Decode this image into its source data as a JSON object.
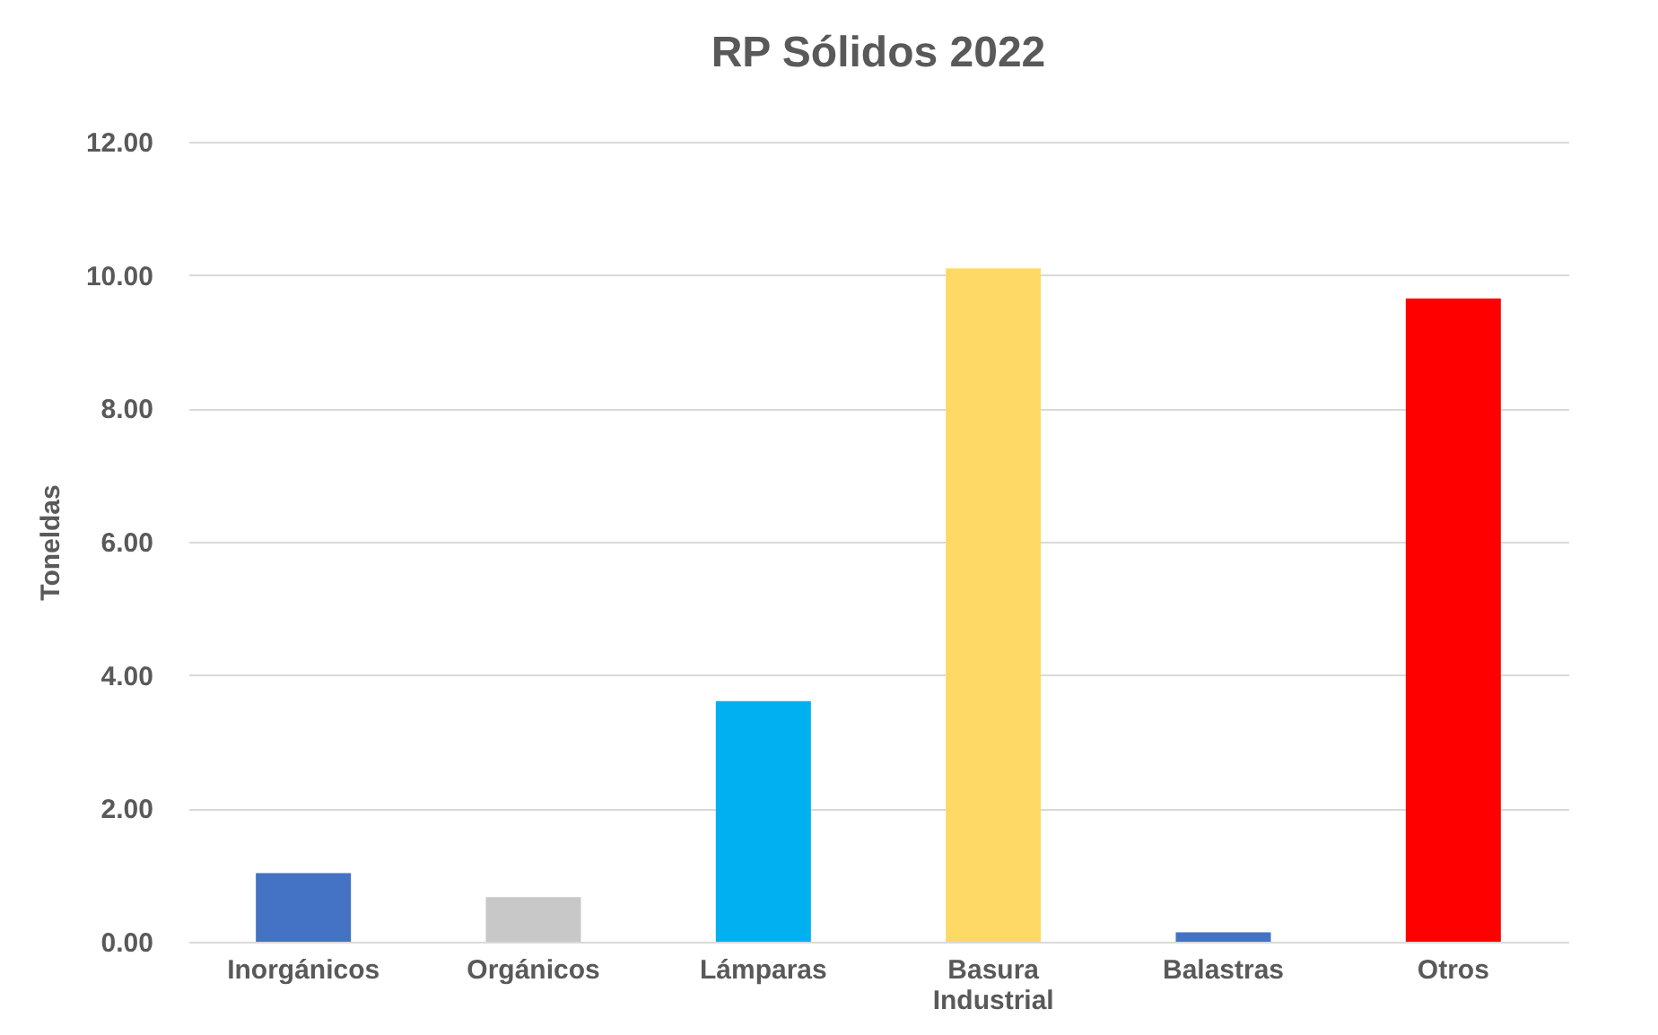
{
  "chart_data": {
    "type": "bar",
    "title": "RP Sólidos 2022",
    "ylabel": "Toneldas",
    "categories": [
      "Inorgánicos",
      "Orgánicos",
      "Lámparas",
      "Basura Industrial",
      "Balastras",
      "Otros"
    ],
    "values": [
      1.03,
      0.67,
      3.61,
      10.1,
      0.14,
      9.65
    ],
    "colors": [
      "#4472c4",
      "#c8c8c8",
      "#00b0f0",
      "#ffd966",
      "#4472c4",
      "#ff0000"
    ],
    "ylim": [
      0,
      12
    ],
    "yticks": [
      {
        "value": 0,
        "label": "0.00"
      },
      {
        "value": 2,
        "label": "2.00"
      },
      {
        "value": 4,
        "label": "4.00"
      },
      {
        "value": 6,
        "label": "6.00"
      },
      {
        "value": 8,
        "label": "8.00"
      },
      {
        "value": 10,
        "label": "10.00"
      },
      {
        "value": 12,
        "label": "12.00"
      }
    ],
    "grid": "y"
  }
}
